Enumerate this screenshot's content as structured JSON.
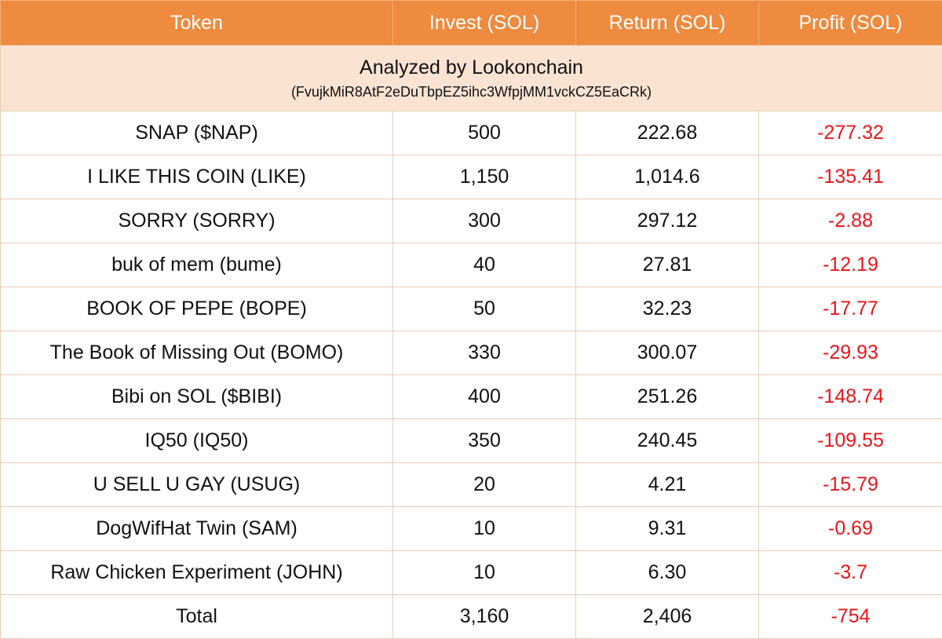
{
  "header": {
    "token": "Token",
    "invest": "Invest (SOL)",
    "return": "Return (SOL)",
    "profit": "Profit (SOL)"
  },
  "banner": {
    "title": "Analyzed by Lookonchain",
    "address": "(FvujkMiR8AtF2eDuTbpEZ5ihc3WfpjMM1vckCZ5EaCRk)"
  },
  "rows": [
    {
      "token": "SNAP ($NAP)",
      "invest": "500",
      "return": "222.68",
      "profit": "-277.32"
    },
    {
      "token": "I LIKE THIS COIN (LIKE)",
      "invest": "1,150",
      "return": "1,014.6",
      "profit": "-135.41"
    },
    {
      "token": "SORRY (SORRY)",
      "invest": "300",
      "return": "297.12",
      "profit": "-2.88"
    },
    {
      "token": "buk of mem (bume)",
      "invest": "40",
      "return": "27.81",
      "profit": "-12.19"
    },
    {
      "token": "BOOK OF PEPE (BOPE)",
      "invest": "50",
      "return": "32.23",
      "profit": "-17.77"
    },
    {
      "token": "The Book of Missing Out (BOMO)",
      "invest": "330",
      "return": "300.07",
      "profit": "-29.93"
    },
    {
      "token": "Bibi on SOL ($BIBI)",
      "invest": "400",
      "return": "251.26",
      "profit": "-148.74"
    },
    {
      "token": "IQ50 (IQ50)",
      "invest": "350",
      "return": "240.45",
      "profit": "-109.55"
    },
    {
      "token": "U SELL U GAY (USUG)",
      "invest": "20",
      "return": "4.21",
      "profit": "-15.79"
    },
    {
      "token": "DogWifHat Twin (SAM)",
      "invest": "10",
      "return": "9.31",
      "profit": "-0.69"
    },
    {
      "token": "Raw Chicken Experiment (JOHN)",
      "invest": "10",
      "return": "6.30",
      "profit": "-3.7"
    }
  ],
  "total": {
    "label": "Total",
    "invest": "3,160",
    "return": "2,406",
    "profit": "-754"
  },
  "colors": {
    "header_bg": "#ee8b3f",
    "banner_bg": "#fbe3d3",
    "loss_text": "#e8161a"
  }
}
